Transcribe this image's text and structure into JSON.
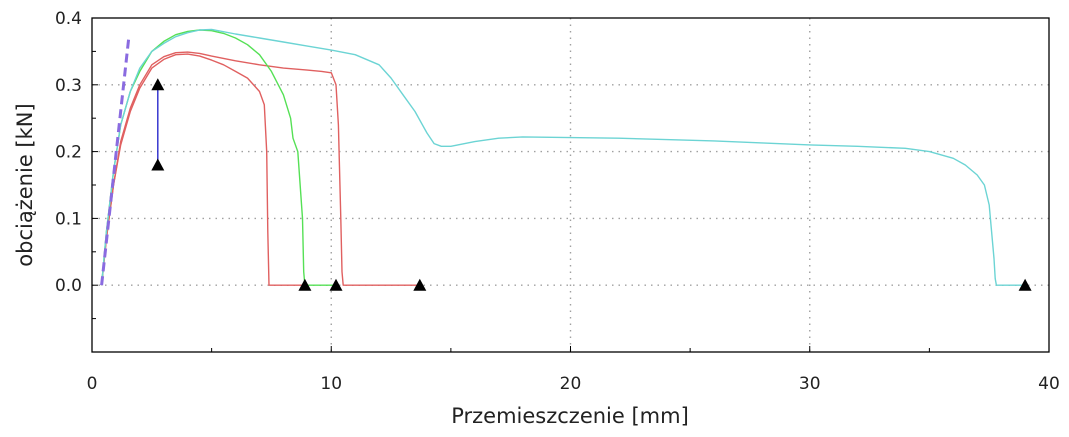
{
  "chart_data": {
    "type": "line",
    "xlabel": "Przemieszczenie [mm]",
    "ylabel": "obciążenie [kN]",
    "xlim": [
      0,
      40
    ],
    "ylim": [
      -0.1,
      0.4
    ],
    "xticks": [
      0,
      10,
      20,
      30,
      40
    ],
    "xtick_labels": [
      "0",
      "10",
      "20",
      "30",
      "40"
    ],
    "yticks": [
      0.0,
      0.1,
      0.2,
      0.3,
      0.4
    ],
    "ytick_labels": [
      "0.0",
      "0.1",
      "0.2",
      "0.3",
      "0.4"
    ],
    "grid": true,
    "series": [
      {
        "color": "#e06060",
        "x": [
          0.4,
          0.6,
          0.9,
          1.2,
          1.6,
          2.0,
          2.5,
          3.0,
          3.5,
          4.0,
          4.5,
          5.0,
          5.5,
          6.0,
          6.5,
          7.0,
          7.2,
          7.3,
          7.35,
          7.4,
          7.5,
          8.0,
          8.9
        ],
        "y": [
          0.0,
          0.07,
          0.15,
          0.21,
          0.26,
          0.295,
          0.325,
          0.338,
          0.345,
          0.346,
          0.343,
          0.337,
          0.33,
          0.32,
          0.31,
          0.29,
          0.27,
          0.2,
          0.08,
          0.0,
          0.0,
          0.0,
          0.0
        ]
      },
      {
        "color": "#e06060",
        "x": [
          0.4,
          0.6,
          0.9,
          1.2,
          1.6,
          2.0,
          2.5,
          3.0,
          3.5,
          4.0,
          4.5,
          5.0,
          6.0,
          7.0,
          8.0,
          9.0,
          9.6,
          10.0,
          10.2,
          10.3,
          10.4,
          10.45,
          10.5,
          10.6,
          11.0,
          12.0,
          13.0,
          13.7
        ],
        "y": [
          0.0,
          0.07,
          0.15,
          0.215,
          0.265,
          0.3,
          0.33,
          0.342,
          0.348,
          0.349,
          0.347,
          0.343,
          0.336,
          0.33,
          0.325,
          0.322,
          0.32,
          0.318,
          0.3,
          0.24,
          0.1,
          0.02,
          0.0,
          0.0,
          0.0,
          0.0,
          0.0,
          0.0
        ]
      },
      {
        "color": "#55e055",
        "x": [
          0.4,
          0.6,
          0.9,
          1.2,
          1.6,
          2.0,
          2.5,
          3.0,
          3.5,
          4.0,
          4.5,
          5.0,
          5.5,
          6.0,
          6.5,
          7.0,
          7.5,
          8.0,
          8.3,
          8.4,
          8.6,
          8.8,
          8.85,
          8.9,
          9.0,
          9.5,
          10.2
        ],
        "y": [
          0.0,
          0.08,
          0.17,
          0.24,
          0.29,
          0.32,
          0.35,
          0.365,
          0.375,
          0.38,
          0.382,
          0.381,
          0.377,
          0.37,
          0.36,
          0.345,
          0.32,
          0.285,
          0.25,
          0.22,
          0.2,
          0.1,
          0.02,
          0.0,
          0.0,
          0.0,
          0.0
        ]
      },
      {
        "color": "#6cd4d4",
        "x": [
          0.4,
          0.6,
          0.9,
          1.2,
          1.6,
          2.0,
          2.5,
          3.0,
          3.5,
          4.0,
          4.5,
          5.0,
          6.0,
          7.0,
          8.0,
          9.0,
          10.0,
          11.0,
          12.0,
          12.5,
          13.0,
          13.5,
          14.0,
          14.3,
          14.6,
          15.0,
          16.0,
          17.0,
          18.0,
          20.0,
          22.0,
          24.0,
          26.0,
          28.0,
          30.0,
          32.0,
          34.0,
          35.0,
          36.0,
          36.5,
          37.0,
          37.3,
          37.5,
          37.6,
          37.7,
          37.75,
          37.8,
          38.0,
          38.5,
          39.0
        ],
        "y": [
          0.0,
          0.08,
          0.17,
          0.24,
          0.29,
          0.325,
          0.35,
          0.362,
          0.372,
          0.378,
          0.382,
          0.383,
          0.376,
          0.37,
          0.364,
          0.358,
          0.352,
          0.345,
          0.33,
          0.31,
          0.285,
          0.26,
          0.228,
          0.212,
          0.208,
          0.208,
          0.215,
          0.22,
          0.222,
          0.221,
          0.22,
          0.218,
          0.216,
          0.213,
          0.21,
          0.208,
          0.205,
          0.2,
          0.19,
          0.18,
          0.165,
          0.15,
          0.12,
          0.08,
          0.04,
          0.01,
          0.0,
          0.0,
          0.0,
          0.0
        ]
      },
      {
        "color": "#2a2acc",
        "x": [
          2.75,
          2.75
        ],
        "y": [
          0.305,
          0.18
        ]
      }
    ],
    "reference_lines": [
      {
        "color": "#8a6be0",
        "style": "dashed",
        "x": [
          0.4,
          1.55
        ],
        "y": [
          0.0,
          0.375
        ]
      }
    ],
    "markers": {
      "shape": "triangle",
      "color": "#000000",
      "points": [
        {
          "x": 2.75,
          "y": 0.3
        },
        {
          "x": 2.75,
          "y": 0.18
        },
        {
          "x": 8.9,
          "y": 0.0
        },
        {
          "x": 10.2,
          "y": 0.0
        },
        {
          "x": 13.7,
          "y": 0.0
        },
        {
          "x": 39.0,
          "y": 0.0
        }
      ]
    }
  }
}
